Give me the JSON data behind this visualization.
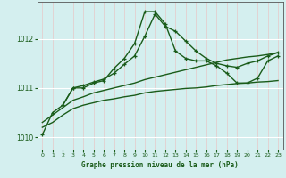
{
  "title": "Graphe pression niveau de la mer (hPa)",
  "bg_color": "#d4efef",
  "grid_color_h": "#ffffff",
  "grid_color_v": "#e8c8c8",
  "line_color": "#1a5c1a",
  "xlim": [
    -0.5,
    23.5
  ],
  "ylim": [
    1009.75,
    1012.75
  ],
  "yticks": [
    1010,
    1011,
    1012
  ],
  "xticks": [
    0,
    1,
    2,
    3,
    4,
    5,
    6,
    7,
    8,
    9,
    10,
    11,
    12,
    13,
    14,
    15,
    16,
    17,
    18,
    19,
    20,
    21,
    22,
    23
  ],
  "series": [
    {
      "x": [
        0,
        1,
        2,
        3,
        4,
        5,
        6,
        7,
        8,
        9,
        10,
        11,
        12,
        13,
        14,
        15,
        16,
        17,
        18,
        19,
        20,
        21,
        22,
        23
      ],
      "y": [
        1010.05,
        1010.5,
        1010.65,
        1011.0,
        1011.0,
        1011.1,
        1011.15,
        1011.4,
        1011.6,
        1011.9,
        1012.55,
        1012.55,
        1012.3,
        1011.75,
        1011.6,
        1011.55,
        1011.55,
        1011.45,
        1011.3,
        1011.1,
        1011.1,
        1011.2,
        1011.55,
        1011.65
      ],
      "marker": true,
      "linewidth": 1.0
    },
    {
      "x": [
        0,
        1,
        2,
        3,
        4,
        5,
        6,
        7,
        8,
        9,
        10,
        11,
        12,
        13,
        14,
        15,
        16,
        17,
        18,
        19,
        20,
        21,
        22,
        23
      ],
      "y": [
        1010.3,
        1010.45,
        1010.6,
        1010.75,
        1010.82,
        1010.9,
        1010.95,
        1011.0,
        1011.05,
        1011.1,
        1011.17,
        1011.22,
        1011.27,
        1011.32,
        1011.37,
        1011.42,
        1011.47,
        1011.52,
        1011.57,
        1011.6,
        1011.63,
        1011.65,
        1011.68,
        1011.72
      ],
      "marker": false,
      "linewidth": 1.0
    },
    {
      "x": [
        0,
        1,
        2,
        3,
        4,
        5,
        6,
        7,
        8,
        9,
        10,
        11,
        12,
        13,
        14,
        15,
        16,
        17,
        18,
        19,
        20,
        21,
        22,
        23
      ],
      "y": [
        1010.2,
        1010.3,
        1010.45,
        1010.58,
        1010.65,
        1010.7,
        1010.75,
        1010.78,
        1010.82,
        1010.85,
        1010.9,
        1010.93,
        1010.95,
        1010.97,
        1010.99,
        1011.0,
        1011.02,
        1011.05,
        1011.07,
        1011.09,
        1011.1,
        1011.12,
        1011.13,
        1011.15
      ],
      "marker": false,
      "linewidth": 1.0
    },
    {
      "x": [
        2,
        3,
        4,
        5,
        6,
        7,
        8,
        9,
        10,
        11,
        12,
        13,
        14,
        15,
        16,
        17,
        18,
        19,
        20,
        21,
        22,
        23
      ],
      "y": [
        1010.65,
        1011.0,
        1011.05,
        1011.12,
        1011.18,
        1011.3,
        1011.48,
        1011.65,
        1012.05,
        1012.5,
        1012.25,
        1012.15,
        1011.95,
        1011.75,
        1011.6,
        1011.5,
        1011.45,
        1011.42,
        1011.5,
        1011.55,
        1011.65,
        1011.72
      ],
      "marker": true,
      "linewidth": 1.0
    }
  ]
}
